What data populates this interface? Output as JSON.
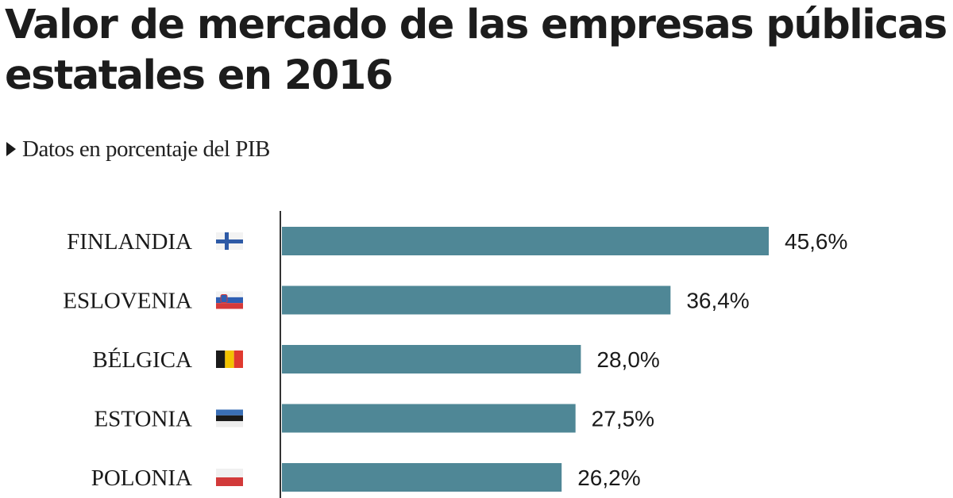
{
  "header": {
    "title": "Valor de mercado de las empresas públicas estatales en 2016",
    "subtitle": "Datos en porcentaje del PIB"
  },
  "chart_data": {
    "type": "bar",
    "orientation": "horizontal",
    "title": "Valor de mercado de las empresas públicas estatales en 2016",
    "subtitle": "Datos en porcentaje del PIB",
    "categories": [
      "FINLANDIA",
      "ESLOVENIA",
      "BÉLGICA",
      "ESTONIA",
      "POLONIA"
    ],
    "values": [
      45.6,
      36.4,
      28.0,
      27.5,
      26.2
    ],
    "value_labels": [
      "45,6%",
      "36,4%",
      "28,0%",
      "27,5%",
      "26,2%"
    ],
    "flags": [
      "finland-flag-icon",
      "slovenia-flag-icon",
      "belgium-flag-icon",
      "estonia-flag-icon",
      "poland-flag-icon"
    ],
    "xlim": [
      0,
      50
    ],
    "bar_color": "#4f8796",
    "grid": false,
    "legend": "none"
  }
}
